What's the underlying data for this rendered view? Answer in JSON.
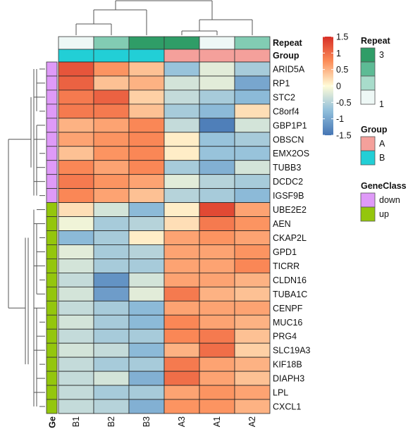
{
  "chart_data": {
    "type": "heatmap",
    "columns": [
      "B1",
      "B2",
      "B3",
      "A3",
      "A1",
      "A2"
    ],
    "rows": [
      "ARID5A",
      "RP1",
      "STC2",
      "C8orf4",
      "GBP1P1",
      "OBSCN",
      "EMX2OS",
      "TUBB3",
      "DCDC2",
      "IGSF9B",
      "UBE2E2",
      "AEN",
      "CKAP2L",
      "GPD1",
      "TICRR",
      "CLDN16",
      "TUBA1C",
      "CENPF",
      "MUC16",
      "PRG4",
      "SLC19A3",
      "KIF18B",
      "DIAPH3",
      "LPL",
      "CXCL1"
    ],
    "values": [
      [
        1.2,
        0.7,
        0.4,
        -0.7,
        -0.2,
        -0.6
      ],
      [
        1.1,
        0.4,
        0.5,
        -0.3,
        -0.2,
        -1.0
      ],
      [
        0.9,
        1.1,
        0.3,
        -0.4,
        -0.6,
        -0.8
      ],
      [
        0.9,
        0.9,
        0.4,
        -0.6,
        -0.8,
        0.2
      ],
      [
        0.5,
        0.6,
        0.8,
        -0.4,
        -1.4,
        -0.3
      ],
      [
        0.6,
        0.7,
        0.8,
        0.1,
        -0.7,
        -0.6
      ],
      [
        0.4,
        0.7,
        0.8,
        0.1,
        -0.7,
        -0.7
      ],
      [
        0.8,
        0.6,
        0.8,
        -0.6,
        -0.9,
        -0.3
      ],
      [
        0.9,
        0.7,
        0.6,
        -0.2,
        -0.5,
        -0.6
      ],
      [
        0.8,
        0.6,
        0.4,
        -0.5,
        -0.6,
        -0.8
      ],
      [
        0.2,
        -0.3,
        -0.8,
        0.1,
        1.3,
        0.6
      ],
      [
        -0.1,
        -0.6,
        -0.5,
        0.2,
        0.9,
        0.7
      ],
      [
        -0.8,
        -0.6,
        0.1,
        0.6,
        0.7,
        0.6
      ],
      [
        -0.2,
        -0.6,
        -0.5,
        0.6,
        0.6,
        0.7
      ],
      [
        -0.3,
        -0.6,
        -0.6,
        0.6,
        0.6,
        0.8
      ],
      [
        -0.4,
        -1.2,
        -0.3,
        0.6,
        0.6,
        0.5
      ],
      [
        -0.3,
        -1.1,
        -0.2,
        0.9,
        0.5,
        0.4
      ],
      [
        -0.4,
        -0.6,
        -0.8,
        0.6,
        0.6,
        0.6
      ],
      [
        -0.3,
        -0.6,
        -0.8,
        0.8,
        0.6,
        0.5
      ],
      [
        -0.4,
        -0.6,
        -0.6,
        0.8,
        0.9,
        0.4
      ],
      [
        -0.3,
        -0.4,
        -0.8,
        0.5,
        1.0,
        0.3
      ],
      [
        -0.4,
        -0.6,
        -0.6,
        0.9,
        0.6,
        0.5
      ],
      [
        -0.4,
        -0.3,
        -0.9,
        1.0,
        0.6,
        0.4
      ],
      [
        -0.4,
        -0.6,
        -0.6,
        0.6,
        0.7,
        0.6
      ],
      [
        -0.4,
        -0.5,
        -0.9,
        0.7,
        0.7,
        0.5
      ]
    ],
    "color_scale": {
      "min": -1.5,
      "max": 1.5,
      "stops": [
        {
          "value": -1.5,
          "color": "#4575b4"
        },
        {
          "value": -0.75,
          "color": "#91bfdb"
        },
        {
          "value": 0,
          "color": "#fffcd8"
        },
        {
          "value": 0.75,
          "color": "#fc8d59"
        },
        {
          "value": 1.5,
          "color": "#d73027"
        }
      ],
      "ticks": [
        "1.5",
        "1",
        "0.5",
        "0",
        "-0.5",
        "-1",
        "-1.5"
      ]
    },
    "column_annotations": {
      "Repeat": {
        "label": "Repeat",
        "values": [
          1,
          2,
          3,
          3,
          1,
          2
        ]
      },
      "Group": {
        "label": "Group",
        "values": [
          "B",
          "B",
          "B",
          "A",
          "A",
          "A"
        ]
      }
    },
    "row_annotations": {
      "GeneClass": {
        "label": "Ge",
        "values": [
          "down",
          "down",
          "down",
          "down",
          "down",
          "down",
          "down",
          "down",
          "down",
          "down",
          "up",
          "up",
          "up",
          "up",
          "up",
          "up",
          "up",
          "up",
          "up",
          "up",
          "up",
          "up",
          "up",
          "up",
          "up"
        ]
      }
    },
    "legends": {
      "repeat": {
        "title": "Repeat",
        "tick_labels": [
          "3",
          "1"
        ],
        "colors": [
          "#2f9d67",
          "#5dbb95",
          "#a8dccb",
          "#eef8f6"
        ]
      },
      "group": {
        "title": "Group",
        "items": [
          {
            "label": "A",
            "color": "#f4a09b"
          },
          {
            "label": "B",
            "color": "#22cfd6"
          }
        ]
      },
      "geneclass": {
        "title": "GeneClass",
        "items": [
          {
            "label": "down",
            "color": "#df9af8"
          },
          {
            "label": "up",
            "color": "#94c60d"
          }
        ]
      }
    },
    "repeat_colors": {
      "1": "#eef8f6",
      "2": "#82ccb3",
      "3": "#2f9d67"
    },
    "group_colors": {
      "A": "#f4a09b",
      "B": "#22cfd6"
    },
    "geneclass_colors": {
      "down": "#df9af8",
      "up": "#94c60d"
    },
    "column_dendrogram": true,
    "row_dendrogram": true
  }
}
